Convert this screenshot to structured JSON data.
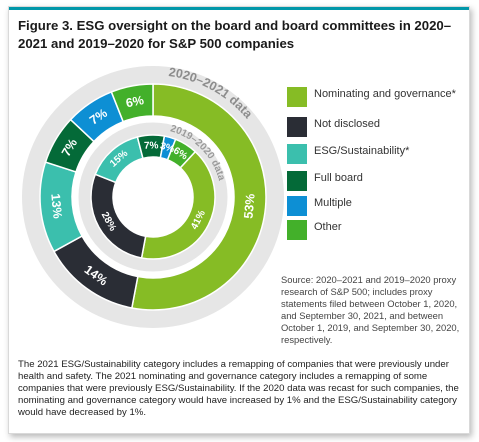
{
  "figure": {
    "title": "Figure 3. ESG oversight on the board and board committees in 2020–2021 and 2019–2020 for S&P 500 companies",
    "source": "Source: 2020–2021 and 2019–2020 proxy research of S&P 500; includes proxy statements filed between October 1, 2020, and September 30, 2021, and between October 1, 2019, and September 30, 2020, respectively.",
    "note": "The 2021 ESG/Sustainability category includes a remapping of companies that were previously under health and safety. The 2021 nominating and governance category includes a remapping of some companies that were previously ESG/Sustainability. If the 2020 data was recast for such companies, the nominating and governance category would have increased by 1% and the ESG/Sustainability category would have decreased by 1%."
  },
  "chart_data": {
    "type": "pie",
    "subtype": "nested-donut",
    "categories": [
      "Nominating and governance*",
      "Not disclosed",
      "ESG/Sustainability*",
      "Full board",
      "Multiple",
      "Other"
    ],
    "colors": [
      "#86bc25",
      "#2a2d35",
      "#3bbfad",
      "#046a38",
      "#0d8fd4",
      "#43b02a"
    ],
    "series": [
      {
        "name": "2020–2021 data",
        "ring": "outer",
        "values": [
          53,
          14,
          13,
          7,
          7,
          6
        ],
        "labels": [
          "53%",
          "14%",
          "13%",
          "7%",
          "7%",
          "6%"
        ]
      },
      {
        "name": "2019–2020 data",
        "ring": "inner",
        "values": [
          41,
          28,
          15,
          7,
          3,
          6
        ],
        "labels": [
          "41%",
          "28%",
          "15%",
          "7%",
          "3%",
          "6%"
        ]
      }
    ],
    "legend_position": "right"
  }
}
